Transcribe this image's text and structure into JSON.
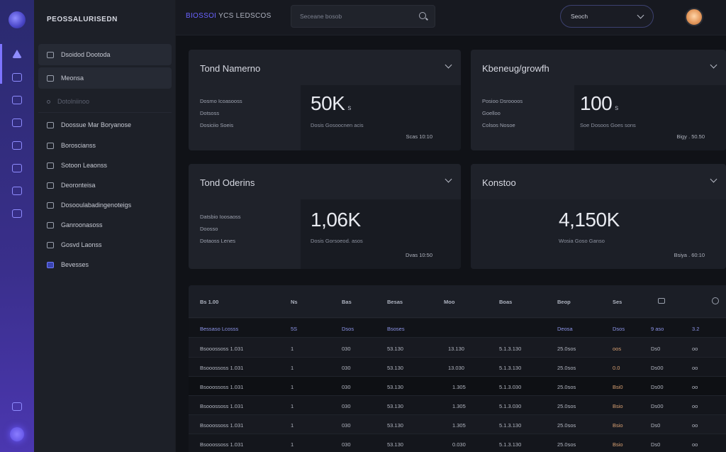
{
  "header": {
    "title_accent": "BIOSSOI",
    "title": "YCS LEDSCOS",
    "search_placeholder": "Seceane bosob",
    "select_value": "Seoch"
  },
  "sidebar": {
    "brand": "PEOSSALURISEDN",
    "items": [
      {
        "label": "Dsoidod Dootoda"
      },
      {
        "label": "Meonsa"
      },
      {
        "label": "Dotolniinoo"
      },
      {
        "label": "Doossue Mar Boryanose"
      },
      {
        "label": "Boroscianss"
      },
      {
        "label": "Sotoon Leaonss"
      },
      {
        "label": "Deoronteisa"
      },
      {
        "label": "Dosooulabadingenoteigs"
      },
      {
        "label": "Ganroonasoss"
      },
      {
        "label": "Gosvd Laonss"
      },
      {
        "label": "Bevesses"
      }
    ]
  },
  "cards": [
    {
      "title": "Tond Namerno",
      "labels": [
        "Dosmo Icoasooss",
        "Dotsoss",
        "Dosiciio Soeis"
      ],
      "value": "50K",
      "unit": "s",
      "sub": "Dosis     Gosoocnen   acis",
      "foot": "Scas   10:10"
    },
    {
      "title": "Kbeneug/growfh",
      "labels": [
        "Posioo Dsroooos",
        "Goelloo",
        "Colsos Nosoe"
      ],
      "value": "100",
      "unit": "s",
      "sub": "Soe   Dosoos   Goes   sons",
      "foot": "Bigy  .  50.50"
    },
    {
      "title": "Tond Oderins",
      "labels": [
        "Datsbio Ioosaoss",
        "Doosso",
        "Dotaoss Lenes"
      ],
      "value": "1,06K",
      "unit": "",
      "sub": "Dosis     Gorsoeod.    asos",
      "foot": "Dvas   10:50"
    },
    {
      "title": "Konstoo",
      "labels": [],
      "value": "4,150K",
      "unit": "",
      "sub": "Wosia   Goso   Ganso",
      "foot": "Bsiya   .   60:10"
    }
  ],
  "table": {
    "headers": [
      "Bs 1.00",
      "Ns",
      "Bas",
      "Besas",
      "Moo",
      "Boas",
      "Beop",
      "Ses"
    ],
    "rows": [
      [
        "Bessaso Lcosss",
        "5S",
        "Dsos",
        "Bsoses",
        "",
        "",
        "Deosa",
        "Dsos",
        "9 aso",
        "3.2"
      ],
      [
        "Bsooossoss 1.031",
        "1",
        "030",
        "53.130",
        "13.130",
        "5.1.3.130",
        "25.0sos",
        "oos",
        "Ds0",
        "oo"
      ],
      [
        "Bsooossoss 1.031",
        "1",
        "030",
        "53.130",
        "13.030",
        "5.1.3.130",
        "25.0sos",
        "0.0",
        "Ds00",
        "oo"
      ],
      [
        "Bsooossoss 1.031",
        "1",
        "030",
        "53.130",
        "1.305",
        "5.1.3.030",
        "25.0sos",
        "Bsi0",
        "Ds00",
        "oo"
      ],
      [
        "Bsooossoss 1.031",
        "1",
        "030",
        "53.130",
        "1.305",
        "5.1.3.030",
        "25.0sos",
        "Bsio",
        "Ds00",
        "oo"
      ],
      [
        "Bsooossoss 1.031",
        "1",
        "030",
        "53.130",
        "1.305",
        "5.1.3.130",
        "25.0sos",
        "Bsio",
        "Ds0",
        "oo"
      ],
      [
        "Bsooossoss 1.031",
        "1",
        "030",
        "53.130",
        "0.030",
        "5.1.3.130",
        "25.0sos",
        "Bsio",
        "Ds0",
        "oo"
      ]
    ]
  }
}
